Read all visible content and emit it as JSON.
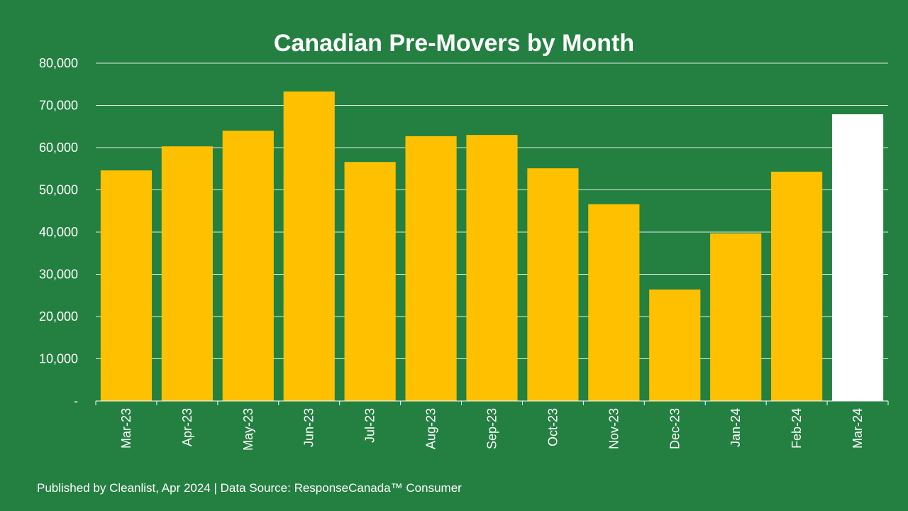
{
  "chart_data": {
    "type": "bar",
    "title": "Canadian Pre-Movers by Month",
    "xlabel": "",
    "ylabel": "",
    "ylim": [
      0,
      80000
    ],
    "grid": true,
    "yticks": [
      0,
      10000,
      20000,
      30000,
      40000,
      50000,
      60000,
      70000,
      80000
    ],
    "ytick_labels": [
      "-",
      "10,000",
      "20,000",
      "30,000",
      "40,000",
      "50,000",
      "60,000",
      "70,000",
      "80,000"
    ],
    "categories": [
      "Mar-23",
      "Apr-23",
      "May-23",
      "Jun-23",
      "Jul-23",
      "Aug-23",
      "Sep-23",
      "Oct-23",
      "Nov-23",
      "Dec-23",
      "Jan-24",
      "Feb-24",
      "Mar-24"
    ],
    "values": [
      54600,
      60300,
      64000,
      73300,
      56600,
      62700,
      63000,
      55100,
      46600,
      26400,
      39700,
      54300,
      67900
    ],
    "bar_colors": [
      "#FFC000",
      "#FFC000",
      "#FFC000",
      "#FFC000",
      "#FFC000",
      "#FFC000",
      "#FFC000",
      "#FFC000",
      "#FFC000",
      "#FFC000",
      "#FFC000",
      "#FFC000",
      "#FFFFFF"
    ]
  },
  "footer": "Published by Cleanlist, Apr 2024 | Data Source: ResponseCanada™ Consumer",
  "colors": {
    "background": "#248041",
    "bar": "#FFC000",
    "highlight": "#FFFFFF"
  }
}
